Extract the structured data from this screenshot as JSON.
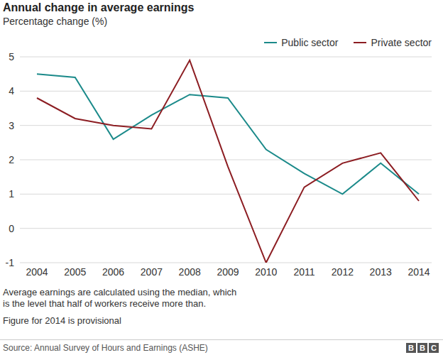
{
  "chart_data": {
    "type": "line",
    "title": "Annual change in average earnings",
    "subtitle": "Percentage change (%)",
    "categories": [
      "2004",
      "2005",
      "2006",
      "2007",
      "2008",
      "2009",
      "2010",
      "2011",
      "2012",
      "2013",
      "2014"
    ],
    "series": [
      {
        "name": "Public sector",
        "color": "#1b8a8a",
        "values": [
          4.5,
          4.4,
          2.6,
          3.3,
          3.9,
          3.8,
          2.3,
          1.6,
          1.0,
          1.9,
          1.0
        ]
      },
      {
        "name": "Private sector",
        "color": "#8c1d22",
        "values": [
          3.8,
          3.2,
          3.0,
          2.9,
          4.9,
          1.8,
          -1.0,
          1.2,
          1.9,
          2.2,
          0.8
        ]
      }
    ],
    "ylim": [
      -1,
      5
    ],
    "yticks": [
      -1,
      0,
      1,
      2,
      3,
      4,
      5
    ],
    "grid": true,
    "legend": "top-right",
    "notes": [
      "Average earnings are calculated using the median, which",
      "is the level that half of workers receive more than.",
      "Figure for 2014 is provisional"
    ],
    "source": "Source: Annual Survey of Hours and Earnings (ASHE)",
    "logo": "BBC"
  }
}
